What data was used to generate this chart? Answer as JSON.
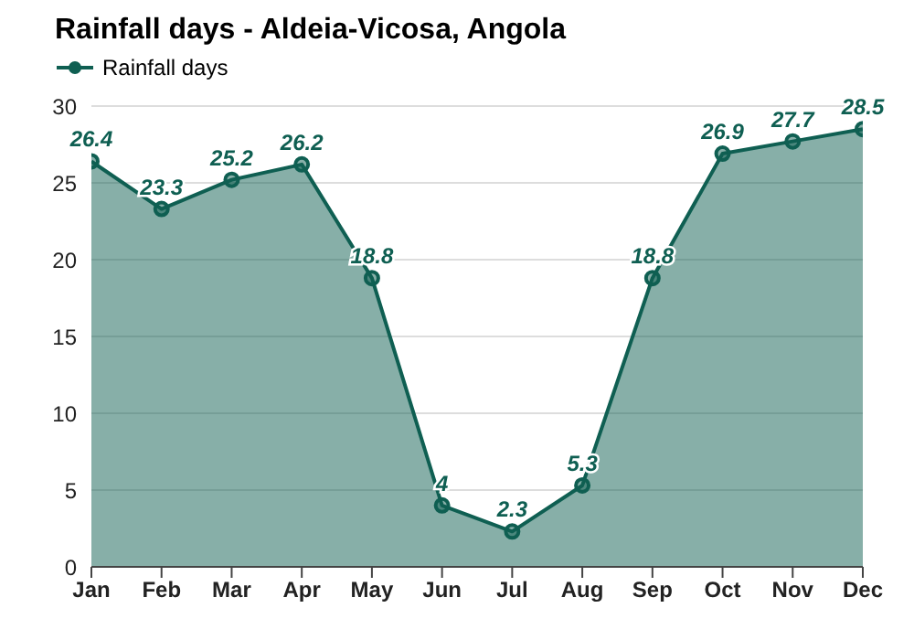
{
  "chart_data": {
    "type": "area",
    "title": "Rainfall days - Aldeia-Vicosa, Angola",
    "categories": [
      "Jan",
      "Feb",
      "Mar",
      "Apr",
      "May",
      "Jun",
      "Jul",
      "Aug",
      "Sep",
      "Oct",
      "Nov",
      "Dec"
    ],
    "series": [
      {
        "name": "Rainfall days",
        "color": "#0f5f52",
        "values": [
          26.4,
          23.3,
          25.2,
          26.2,
          18.8,
          4,
          2.3,
          5.3,
          18.8,
          26.9,
          27.7,
          28.5
        ]
      }
    ],
    "ylim": [
      0,
      30
    ],
    "yticks": [
      0,
      5,
      10,
      15,
      20,
      25,
      30
    ],
    "grid": "y",
    "legend": "top left",
    "marker": "circle",
    "data_labels": true
  }
}
